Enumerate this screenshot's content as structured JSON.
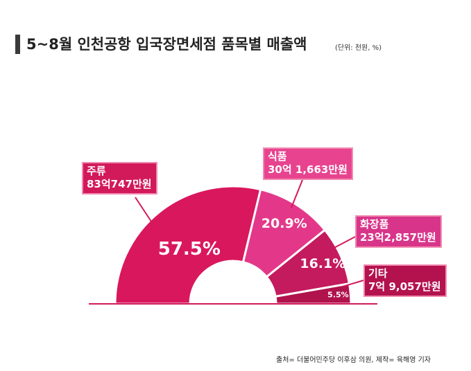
{
  "header": {
    "title": "5~8월 인천공항 입국장면세점 품목별 매출액",
    "unit": "(단위: 천원, %)"
  },
  "chart_data": {
    "type": "pie",
    "title": "5~8월 인천공항 입국장면세점 품목별 매출액",
    "subtitle": "(단위: 천원, %)",
    "style": "half-donut",
    "slices": [
      {
        "name": "주류",
        "amount": "83억747만원",
        "percent": 57.5,
        "percent_label": "57.5%",
        "color": "#d9175c"
      },
      {
        "name": "식품",
        "amount": "30억 1,663만원",
        "percent": 20.9,
        "percent_label": "20.9%",
        "color": "#e3388a"
      },
      {
        "name": "화장품",
        "amount": "23억2,857만원",
        "percent": 16.1,
        "percent_label": "16.1%",
        "color": "#c41a5e"
      },
      {
        "name": "기타",
        "amount": "7억 9,057만원",
        "percent": 5.5,
        "percent_label": "5.5%",
        "color": "#b0124c"
      }
    ]
  },
  "footer": {
    "source": "출처= 더불어민주당 이후삼 의원,   제작= 육해영 기자"
  }
}
